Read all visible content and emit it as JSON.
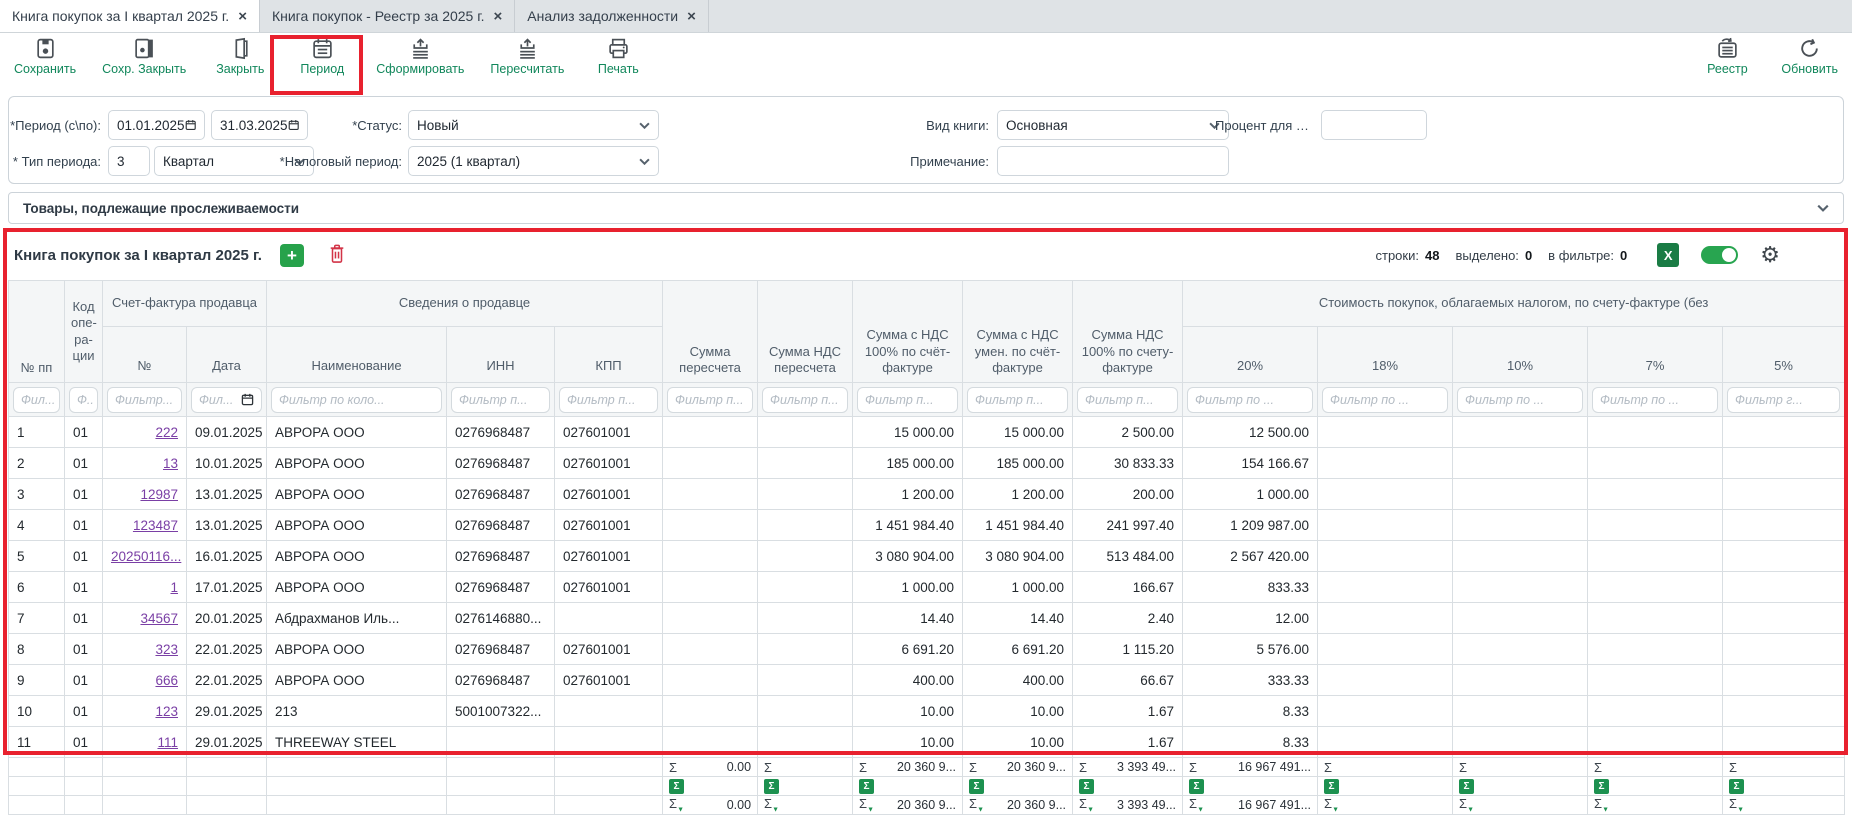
{
  "tabs": [
    {
      "label": "Книга покупок за I квартал 2025 г.",
      "close": "×",
      "active": true
    },
    {
      "label": "Книга покупок - Реестр за 2025 г.",
      "close": "×",
      "active": false
    },
    {
      "label": "Анализ задолженности",
      "close": "×",
      "active": false
    }
  ],
  "toolbar": {
    "left": [
      {
        "label": "Сохранить"
      },
      {
        "label": "Сохр. Закрыть"
      },
      {
        "label": "Закрыть"
      },
      {
        "label": "Период"
      },
      {
        "label": "Сформировать"
      },
      {
        "label": "Пересчитать"
      },
      {
        "label": "Печать"
      }
    ],
    "right": [
      {
        "label": "Реестр"
      },
      {
        "label": "Обновить"
      }
    ]
  },
  "filters": {
    "period_label": "*Период (с\\по):",
    "period_from": "01.01.2025",
    "period_to": "31.03.2025",
    "status_label": "*Статус:",
    "status_value": "Новый",
    "book_type_label": "Вид книги:",
    "book_type_value": "Основная",
    "percent_label": "Процент для умень...",
    "percent_value": "",
    "period_type_label": "* Тип периода:",
    "period_type_code": "3",
    "period_type_value": "Квартал",
    "tax_period_label": "*Налоговый период:",
    "tax_period_value": "2025 (1 квартал)",
    "note_label": "Примечание:",
    "note_value": ""
  },
  "trace_bar": {
    "label": "Товары, подлежащие прослеживаемости"
  },
  "grid": {
    "title": "Книга покупок за I квартал 2025 г.",
    "stats": {
      "rows_label": "строки:",
      "rows_value": "48",
      "selected_label": "выделено:",
      "selected_value": "0",
      "filtered_label": "в фильтре:",
      "filtered_value": "0"
    },
    "headers": {
      "num": "№ пп",
      "op_code": "Код\nопе-\nра-\nции",
      "invoice_group": "Счет-фактура продавца",
      "invoice_no": "№",
      "invoice_date": "Дата",
      "seller_group": "Сведения о продавце",
      "seller_name": "Наименование",
      "seller_inn": "ИНН",
      "seller_kpp": "КПП",
      "recalc_sum": "Сумма пересчета",
      "recalc_vat": "Сумма НДС пересчета",
      "sum_vat_100": "Сумма с НДС 100% по счёт-фактуре",
      "sum_vat_reduced": "Сумма с НДС умен. по счёт-фактуре",
      "vat_100": "Сумма НДС 100% по счету-фактуре",
      "cost_group": "Стоимость покупок, облагаемых налогом, по счету-фактуре (без",
      "p20": "20%",
      "p18": "18%",
      "p10": "10%",
      "p7": "7%",
      "p5": "5%"
    },
    "filter_placeholders": [
      "Фил...",
      "Ф..",
      "Фильтр...",
      "Фил...",
      "Фильтр по коло...",
      "Фильтр п...",
      "Фильтр п...",
      "Фильтр п...",
      "Фильтр п...",
      "Фильтр п...",
      "Фильтр п...",
      "Фильтр п...",
      "Фильтр по ...",
      "Фильтр по ...",
      "Фильтр по ...",
      "Фильтр по ...",
      "Фильтр г..."
    ],
    "rows": [
      [
        "1",
        "01",
        "222",
        "09.01.2025",
        "АВРОРА ООО",
        "0276968487",
        "027601001",
        "",
        "",
        "15 000.00",
        "15 000.00",
        "2 500.00",
        "12 500.00",
        "",
        "",
        "",
        ""
      ],
      [
        "2",
        "01",
        "13",
        "10.01.2025",
        "АВРОРА ООО",
        "0276968487",
        "027601001",
        "",
        "",
        "185 000.00",
        "185 000.00",
        "30 833.33",
        "154 166.67",
        "",
        "",
        "",
        ""
      ],
      [
        "3",
        "01",
        "12987",
        "13.01.2025",
        "АВРОРА ООО",
        "0276968487",
        "027601001",
        "",
        "",
        "1 200.00",
        "1 200.00",
        "200.00",
        "1 000.00",
        "",
        "",
        "",
        ""
      ],
      [
        "4",
        "01",
        "123487",
        "13.01.2025",
        "АВРОРА ООО",
        "0276968487",
        "027601001",
        "",
        "",
        "1 451 984.40",
        "1 451 984.40",
        "241 997.40",
        "1 209 987.00",
        "",
        "",
        "",
        ""
      ],
      [
        "5",
        "01",
        "20250116...",
        "16.01.2025",
        "АВРОРА ООО",
        "0276968487",
        "027601001",
        "",
        "",
        "3 080 904.00",
        "3 080 904.00",
        "513 484.00",
        "2 567 420.00",
        "",
        "",
        "",
        ""
      ],
      [
        "6",
        "01",
        "1",
        "17.01.2025",
        "АВРОРА ООО",
        "0276968487",
        "027601001",
        "",
        "",
        "1 000.00",
        "1 000.00",
        "166.67",
        "833.33",
        "",
        "",
        "",
        ""
      ],
      [
        "7",
        "01",
        "34567",
        "20.01.2025",
        "Абдрахманов Иль...",
        "0276146880...",
        "",
        "",
        "",
        "14.40",
        "14.40",
        "2.40",
        "12.00",
        "",
        "",
        "",
        ""
      ],
      [
        "8",
        "01",
        "323",
        "22.01.2025",
        "АВРОРА ООО",
        "0276968487",
        "027601001",
        "",
        "",
        "6 691.20",
        "6 691.20",
        "1 115.20",
        "5 576.00",
        "",
        "",
        "",
        ""
      ],
      [
        "9",
        "01",
        "666",
        "22.01.2025",
        "АВРОРА ООО",
        "0276968487",
        "027601001",
        "",
        "",
        "400.00",
        "400.00",
        "66.67",
        "333.33",
        "",
        "",
        "",
        ""
      ],
      [
        "10",
        "01",
        "123",
        "29.01.2025",
        "213",
        "5001007322...",
        "",
        "",
        "",
        "10.00",
        "10.00",
        "1.67",
        "8.33",
        "",
        "",
        "",
        ""
      ],
      [
        "11",
        "01",
        "111",
        "29.01.2025",
        "THREEWAY STEEL",
        "",
        "",
        "",
        "",
        "10.00",
        "10.00",
        "1.67",
        "8.33",
        "",
        "",
        "",
        ""
      ]
    ],
    "summary": {
      "sigma": "Σ",
      "total_values": [
        "",
        "",
        "",
        "",
        "",
        "",
        "",
        "0.00",
        "",
        "20 360 9...",
        "20 360 9...",
        "3 393 49...",
        "16 967 491...",
        "",
        "",
        "",
        ""
      ],
      "filtered_values": [
        "",
        "",
        "",
        "",
        "",
        "",
        "",
        "0.00",
        "",
        "20 360 9...",
        "20 360 9...",
        "3 393 49...",
        "16 967 491...",
        "",
        "",
        "",
        ""
      ]
    }
  }
}
